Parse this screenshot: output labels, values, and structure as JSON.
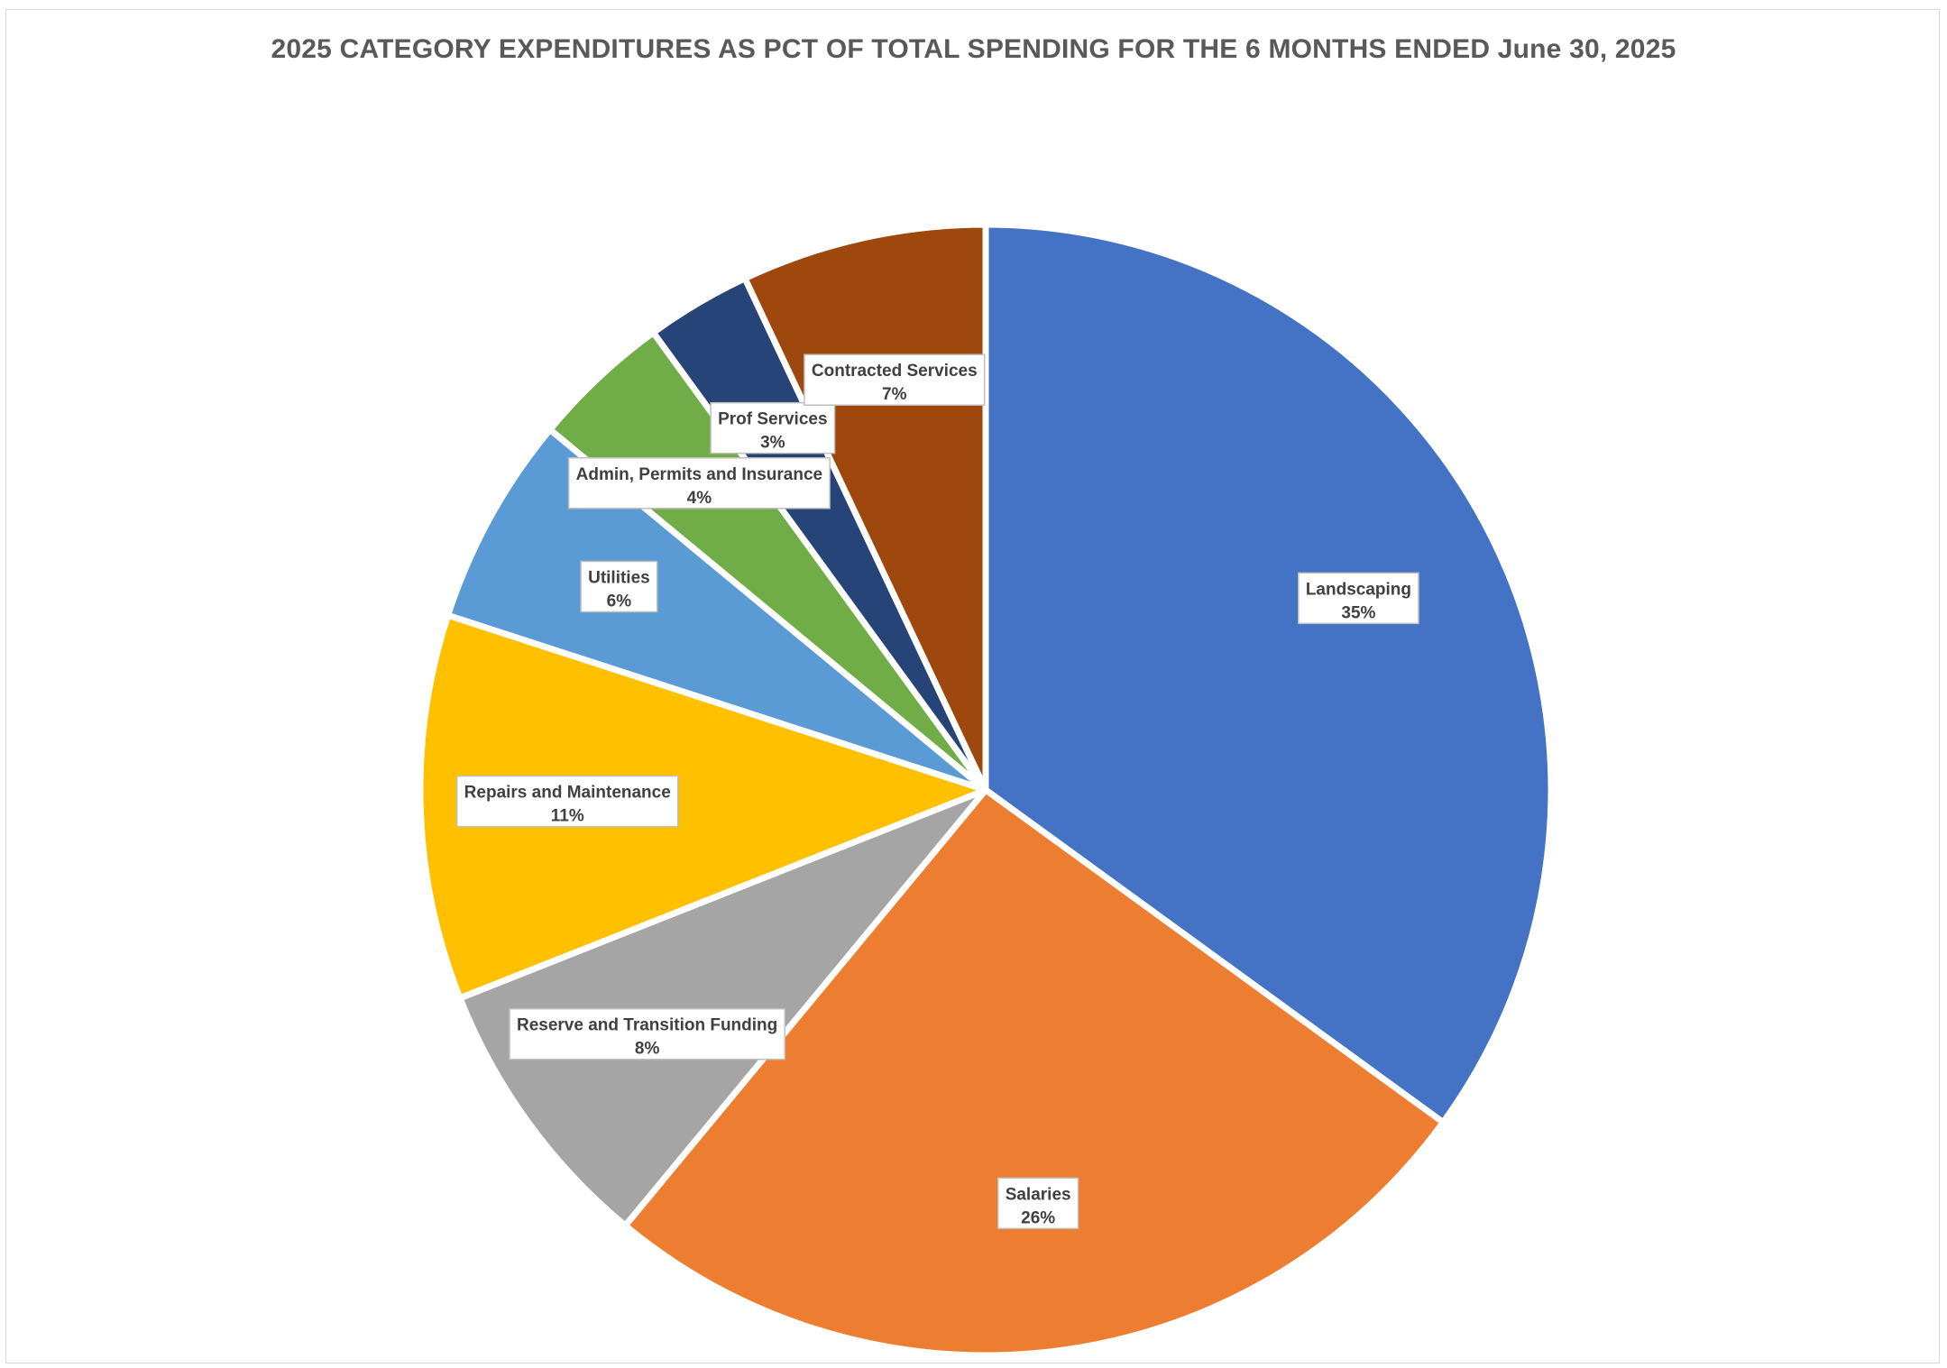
{
  "chart_data": {
    "type": "pie",
    "title": "2025 CATEGORY EXPENDITURES AS PCT OF TOTAL SPENDING FOR THE 6 MONTHS ENDED June 30, 2025",
    "slices": [
      {
        "label": "Landscaping",
        "value": 35,
        "display": "35%",
        "color": "#4472C4"
      },
      {
        "label": "Salaries",
        "value": 26,
        "display": "26%",
        "color": "#ED7D31"
      },
      {
        "label": "Reserve and Transition Funding",
        "value": 8,
        "display": "8%",
        "color": "#A5A5A5"
      },
      {
        "label": "Repairs and Maintenance",
        "value": 11,
        "display": "11%",
        "color": "#FFC000"
      },
      {
        "label": "Utilities",
        "value": 6,
        "display": "6%",
        "color": "#5B9BD5"
      },
      {
        "label": "Admin, Permits and Insurance",
        "value": 4,
        "display": "4%",
        "color": "#70AD47"
      },
      {
        "label": "Prof Services",
        "value": 3,
        "display": "3%",
        "color": "#264478"
      },
      {
        "label": "Contracted Services",
        "value": 7,
        "display": "7%",
        "color": "#9E480E"
      }
    ],
    "start_angle": "12 o'clock",
    "direction": "clockwise",
    "legend": "none",
    "data_labels": "category and percentage"
  }
}
